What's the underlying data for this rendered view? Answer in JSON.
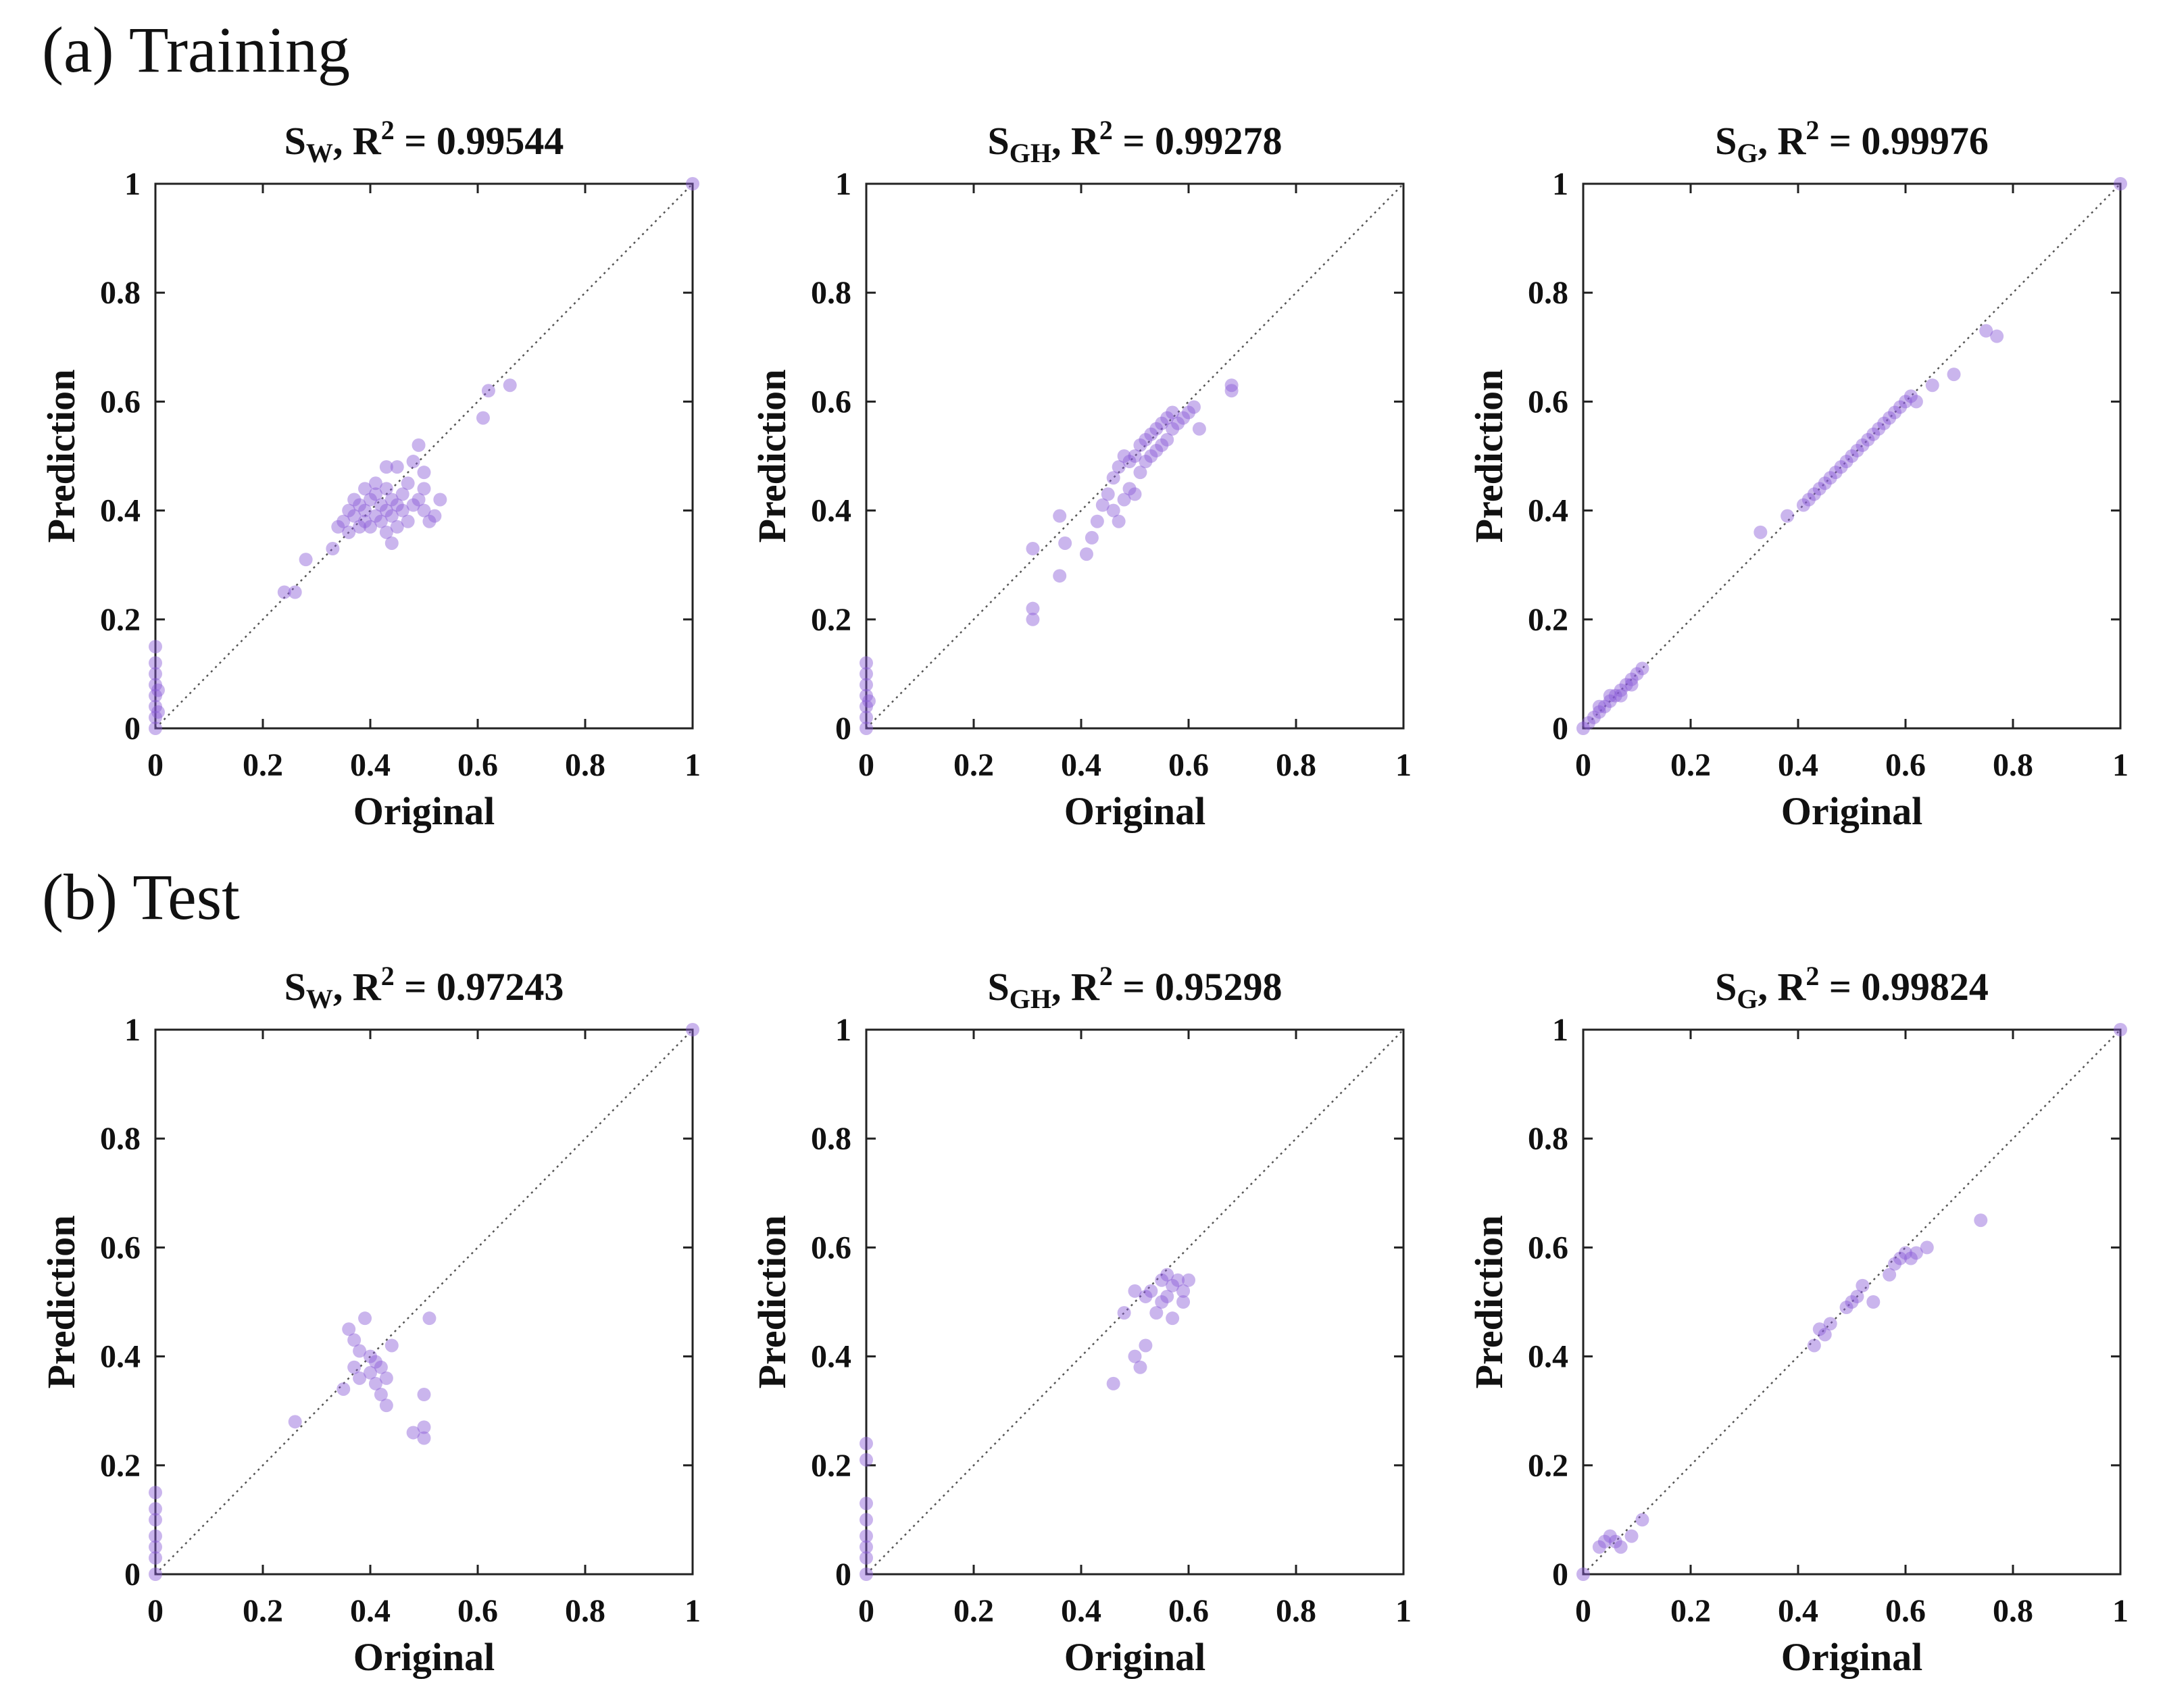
{
  "sections": {
    "a": "(a) Training",
    "b": "(b) Test"
  },
  "colors": {
    "point": "#8a5cd6",
    "axis": "#222222",
    "diag": "#555555"
  },
  "chart_data": [
    {
      "type": "scatter",
      "section": "a",
      "row": 0,
      "col": 0,
      "title": {
        "var": "S",
        "sub": "W",
        "r2_label": "R",
        "r2_sup": "2",
        "r2_text": " = 0.99544"
      },
      "xlabel": "Original",
      "ylabel": "Prediction",
      "xlim": [
        0,
        1
      ],
      "ylim": [
        0,
        1
      ],
      "ticks": [
        "0",
        "0.2",
        "0.4",
        "0.6",
        "0.8",
        "1"
      ],
      "tick_values": [
        0,
        0.2,
        0.4,
        0.6,
        0.8,
        1
      ],
      "points": [
        [
          0,
          0
        ],
        [
          0,
          0.02
        ],
        [
          0,
          0.04
        ],
        [
          0,
          0.06
        ],
        [
          0,
          0.08
        ],
        [
          0,
          0.1
        ],
        [
          0,
          0.12
        ],
        [
          0,
          0.15
        ],
        [
          0.005,
          0.03
        ],
        [
          0.005,
          0.07
        ],
        [
          1,
          1
        ],
        [
          0.24,
          0.25
        ],
        [
          0.26,
          0.25
        ],
        [
          0.28,
          0.31
        ],
        [
          0.33,
          0.33
        ],
        [
          0.34,
          0.37
        ],
        [
          0.35,
          0.38
        ],
        [
          0.36,
          0.36
        ],
        [
          0.37,
          0.39
        ],
        [
          0.38,
          0.37
        ],
        [
          0.38,
          0.41
        ],
        [
          0.39,
          0.38
        ],
        [
          0.39,
          0.4
        ],
        [
          0.4,
          0.37
        ],
        [
          0.4,
          0.42
        ],
        [
          0.41,
          0.39
        ],
        [
          0.41,
          0.43
        ],
        [
          0.42,
          0.38
        ],
        [
          0.42,
          0.41
        ],
        [
          0.43,
          0.36
        ],
        [
          0.43,
          0.4
        ],
        [
          0.43,
          0.44
        ],
        [
          0.44,
          0.39
        ],
        [
          0.44,
          0.42
        ],
        [
          0.45,
          0.37
        ],
        [
          0.45,
          0.41
        ],
        [
          0.46,
          0.43
        ],
        [
          0.46,
          0.4
        ],
        [
          0.47,
          0.38
        ],
        [
          0.47,
          0.45
        ],
        [
          0.48,
          0.41
        ],
        [
          0.48,
          0.49
        ],
        [
          0.49,
          0.42
        ],
        [
          0.49,
          0.52
        ],
        [
          0.5,
          0.4
        ],
        [
          0.5,
          0.44
        ],
        [
          0.51,
          0.38
        ],
        [
          0.5,
          0.47
        ],
        [
          0.44,
          0.34
        ],
        [
          0.45,
          0.48
        ],
        [
          0.43,
          0.48
        ],
        [
          0.36,
          0.4
        ],
        [
          0.37,
          0.42
        ],
        [
          0.39,
          0.44
        ],
        [
          0.41,
          0.45
        ],
        [
          0.52,
          0.39
        ],
        [
          0.53,
          0.42
        ],
        [
          0.61,
          0.57
        ],
        [
          0.62,
          0.62
        ],
        [
          0.66,
          0.63
        ]
      ]
    },
    {
      "type": "scatter",
      "section": "a",
      "row": 0,
      "col": 1,
      "title": {
        "var": "S",
        "sub": "GH",
        "r2_label": "R",
        "r2_sup": "2",
        "r2_text": " = 0.99278"
      },
      "xlabel": "Original",
      "ylabel": "Prediction",
      "xlim": [
        0,
        1
      ],
      "ylim": [
        0,
        1
      ],
      "ticks": [
        "0",
        "0.2",
        "0.4",
        "0.6",
        "0.8",
        "1"
      ],
      "tick_values": [
        0,
        0.2,
        0.4,
        0.6,
        0.8,
        1
      ],
      "points": [
        [
          0,
          0
        ],
        [
          0,
          0.02
        ],
        [
          0,
          0.04
        ],
        [
          0,
          0.06
        ],
        [
          0,
          0.08
        ],
        [
          0,
          0.1
        ],
        [
          0,
          0.12
        ],
        [
          0.005,
          0.05
        ],
        [
          0.31,
          0.2
        ],
        [
          0.31,
          0.22
        ],
        [
          0.31,
          0.33
        ],
        [
          0.36,
          0.28
        ],
        [
          0.36,
          0.39
        ],
        [
          0.37,
          0.34
        ],
        [
          0.41,
          0.32
        ],
        [
          0.42,
          0.35
        ],
        [
          0.43,
          0.38
        ],
        [
          0.44,
          0.41
        ],
        [
          0.45,
          0.43
        ],
        [
          0.46,
          0.4
        ],
        [
          0.46,
          0.46
        ],
        [
          0.47,
          0.38
        ],
        [
          0.47,
          0.48
        ],
        [
          0.48,
          0.42
        ],
        [
          0.48,
          0.5
        ],
        [
          0.49,
          0.44
        ],
        [
          0.49,
          0.49
        ],
        [
          0.5,
          0.43
        ],
        [
          0.5,
          0.5
        ],
        [
          0.51,
          0.47
        ],
        [
          0.51,
          0.52
        ],
        [
          0.52,
          0.49
        ],
        [
          0.52,
          0.53
        ],
        [
          0.53,
          0.5
        ],
        [
          0.53,
          0.54
        ],
        [
          0.54,
          0.51
        ],
        [
          0.54,
          0.55
        ],
        [
          0.55,
          0.52
        ],
        [
          0.55,
          0.56
        ],
        [
          0.56,
          0.53
        ],
        [
          0.56,
          0.57
        ],
        [
          0.57,
          0.55
        ],
        [
          0.57,
          0.58
        ],
        [
          0.58,
          0.56
        ],
        [
          0.59,
          0.57
        ],
        [
          0.6,
          0.58
        ],
        [
          0.61,
          0.59
        ],
        [
          0.62,
          0.55
        ],
        [
          0.68,
          0.62
        ],
        [
          0.68,
          0.63
        ]
      ]
    },
    {
      "type": "scatter",
      "section": "a",
      "row": 0,
      "col": 2,
      "title": {
        "var": "S",
        "sub": "G",
        "r2_label": "R",
        "r2_sup": "2",
        "r2_text": " = 0.99976"
      },
      "xlabel": "Original",
      "ylabel": "Prediction",
      "xlim": [
        0,
        1
      ],
      "ylim": [
        0,
        1
      ],
      "ticks": [
        "0",
        "0.2",
        "0.4",
        "0.6",
        "0.8",
        "1"
      ],
      "tick_values": [
        0,
        0.2,
        0.4,
        0.6,
        0.8,
        1
      ],
      "points": [
        [
          0,
          0
        ],
        [
          0.01,
          0.01
        ],
        [
          0.02,
          0.02
        ],
        [
          0.03,
          0.03
        ],
        [
          0.04,
          0.04
        ],
        [
          0.05,
          0.05
        ],
        [
          0.06,
          0.06
        ],
        [
          0.07,
          0.07
        ],
        [
          0.08,
          0.08
        ],
        [
          0.09,
          0.09
        ],
        [
          0.1,
          0.1
        ],
        [
          0.11,
          0.11
        ],
        [
          0.03,
          0.04
        ],
        [
          0.05,
          0.06
        ],
        [
          0.07,
          0.06
        ],
        [
          0.09,
          0.08
        ],
        [
          0.33,
          0.36
        ],
        [
          0.38,
          0.39
        ],
        [
          0.41,
          0.41
        ],
        [
          0.42,
          0.42
        ],
        [
          0.43,
          0.43
        ],
        [
          0.44,
          0.44
        ],
        [
          0.45,
          0.45
        ],
        [
          0.46,
          0.46
        ],
        [
          0.47,
          0.47
        ],
        [
          0.48,
          0.48
        ],
        [
          0.49,
          0.49
        ],
        [
          0.5,
          0.5
        ],
        [
          0.51,
          0.51
        ],
        [
          0.52,
          0.52
        ],
        [
          0.53,
          0.53
        ],
        [
          0.54,
          0.54
        ],
        [
          0.55,
          0.55
        ],
        [
          0.56,
          0.56
        ],
        [
          0.57,
          0.57
        ],
        [
          0.58,
          0.58
        ],
        [
          0.59,
          0.59
        ],
        [
          0.6,
          0.6
        ],
        [
          0.61,
          0.61
        ],
        [
          0.62,
          0.6
        ],
        [
          0.65,
          0.63
        ],
        [
          0.69,
          0.65
        ],
        [
          0.75,
          0.73
        ],
        [
          0.77,
          0.72
        ],
        [
          1,
          1
        ]
      ]
    },
    {
      "type": "scatter",
      "section": "b",
      "row": 1,
      "col": 0,
      "title": {
        "var": "S",
        "sub": "W",
        "r2_label": "R",
        "r2_sup": "2",
        "r2_text": " = 0.97243"
      },
      "xlabel": "Original",
      "ylabel": "Prediction",
      "xlim": [
        0,
        1
      ],
      "ylim": [
        0,
        1
      ],
      "ticks": [
        "0",
        "0.2",
        "0.4",
        "0.6",
        "0.8",
        "1"
      ],
      "tick_values": [
        0,
        0.2,
        0.4,
        0.6,
        0.8,
        1
      ],
      "points": [
        [
          0,
          0
        ],
        [
          0,
          0.03
        ],
        [
          0,
          0.05
        ],
        [
          0,
          0.07
        ],
        [
          0,
          0.1
        ],
        [
          0,
          0.12
        ],
        [
          0,
          0.15
        ],
        [
          1,
          1
        ],
        [
          0.26,
          0.28
        ],
        [
          0.35,
          0.34
        ],
        [
          0.36,
          0.45
        ],
        [
          0.37,
          0.43
        ],
        [
          0.37,
          0.38
        ],
        [
          0.38,
          0.41
        ],
        [
          0.38,
          0.36
        ],
        [
          0.39,
          0.47
        ],
        [
          0.4,
          0.4
        ],
        [
          0.4,
          0.37
        ],
        [
          0.41,
          0.39
        ],
        [
          0.41,
          0.35
        ],
        [
          0.42,
          0.38
        ],
        [
          0.42,
          0.33
        ],
        [
          0.43,
          0.36
        ],
        [
          0.43,
          0.31
        ],
        [
          0.44,
          0.42
        ],
        [
          0.48,
          0.26
        ],
        [
          0.5,
          0.25
        ],
        [
          0.5,
          0.27
        ],
        [
          0.5,
          0.33
        ],
        [
          0.51,
          0.47
        ]
      ]
    },
    {
      "type": "scatter",
      "section": "b",
      "row": 1,
      "col": 1,
      "title": {
        "var": "S",
        "sub": "GH",
        "r2_label": "R",
        "r2_sup": "2",
        "r2_text": " = 0.95298"
      },
      "xlabel": "Original",
      "ylabel": "Prediction",
      "xlim": [
        0,
        1
      ],
      "ylim": [
        0,
        1
      ],
      "ticks": [
        "0",
        "0.2",
        "0.4",
        "0.6",
        "0.8",
        "1"
      ],
      "tick_values": [
        0,
        0.2,
        0.4,
        0.6,
        0.8,
        1
      ],
      "points": [
        [
          0,
          0
        ],
        [
          0,
          0.03
        ],
        [
          0,
          0.05
        ],
        [
          0,
          0.07
        ],
        [
          0,
          0.1
        ],
        [
          0,
          0.13
        ],
        [
          0,
          0.21
        ],
        [
          0,
          0.24
        ],
        [
          0.46,
          0.35
        ],
        [
          0.48,
          0.48
        ],
        [
          0.5,
          0.52
        ],
        [
          0.5,
          0.4
        ],
        [
          0.51,
          0.38
        ],
        [
          0.52,
          0.42
        ],
        [
          0.52,
          0.51
        ],
        [
          0.53,
          0.52
        ],
        [
          0.54,
          0.48
        ],
        [
          0.55,
          0.5
        ],
        [
          0.55,
          0.54
        ],
        [
          0.56,
          0.55
        ],
        [
          0.56,
          0.51
        ],
        [
          0.57,
          0.53
        ],
        [
          0.57,
          0.47
        ],
        [
          0.58,
          0.54
        ],
        [
          0.59,
          0.52
        ],
        [
          0.59,
          0.5
        ],
        [
          0.6,
          0.54
        ]
      ]
    },
    {
      "type": "scatter",
      "section": "b",
      "row": 1,
      "col": 2,
      "title": {
        "var": "S",
        "sub": "G",
        "r2_label": "R",
        "r2_sup": "2",
        "r2_text": " = 0.99824"
      },
      "xlabel": "Original",
      "ylabel": "Prediction",
      "xlim": [
        0,
        1
      ],
      "ylim": [
        0,
        1
      ],
      "ticks": [
        "0",
        "0.2",
        "0.4",
        "0.6",
        "0.8",
        "1"
      ],
      "tick_values": [
        0,
        0.2,
        0.4,
        0.6,
        0.8,
        1
      ],
      "points": [
        [
          0,
          0
        ],
        [
          0.03,
          0.05
        ],
        [
          0.04,
          0.06
        ],
        [
          0.05,
          0.07
        ],
        [
          0.06,
          0.06
        ],
        [
          0.07,
          0.05
        ],
        [
          0.09,
          0.07
        ],
        [
          0.11,
          0.1
        ],
        [
          0.43,
          0.42
        ],
        [
          0.44,
          0.45
        ],
        [
          0.45,
          0.44
        ],
        [
          0.46,
          0.46
        ],
        [
          0.49,
          0.49
        ],
        [
          0.5,
          0.5
        ],
        [
          0.51,
          0.51
        ],
        [
          0.52,
          0.53
        ],
        [
          0.54,
          0.5
        ],
        [
          0.57,
          0.55
        ],
        [
          0.58,
          0.57
        ],
        [
          0.59,
          0.58
        ],
        [
          0.6,
          0.59
        ],
        [
          0.61,
          0.58
        ],
        [
          0.62,
          0.59
        ],
        [
          0.64,
          0.6
        ],
        [
          0.74,
          0.65
        ],
        [
          1,
          1
        ]
      ]
    }
  ]
}
